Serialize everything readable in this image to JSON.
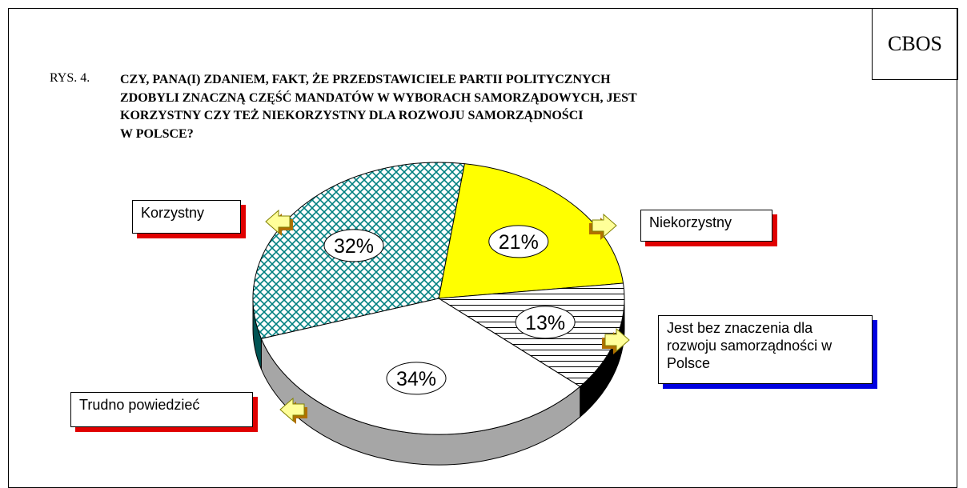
{
  "chart_data": {
    "type": "pie",
    "source": "CBOS",
    "figure_label": "RYS. 4.",
    "title_lines": [
      "CZY, PANA(I) ZDANIEM, FAKT, ŻE PRZEDSTAWICIELE PARTII POLITYCZNYCH",
      "ZDOBYLI ZNACZNĄ CZĘŚĆ MANDATÓW W WYBORACH SAMORZĄDOWYCH, JEST",
      "KORZYSTNY CZY TEŻ NIEKORZYSTNY DLA ROZWOJU SAMORZĄDNOŚCI",
      "W POLSCE?"
    ],
    "categories": [
      "Niekorzystny",
      "Jest bez znaczenia dla rozwoju samorządności w Polsce",
      "Trudno powiedzieć",
      "Korzystny"
    ],
    "values": [
      21,
      13,
      34,
      32
    ],
    "value_labels": [
      "21%",
      "13%",
      "34%",
      "32%"
    ],
    "colors": [
      "#ffff00",
      "#000000",
      "#ffffff",
      "#008080"
    ],
    "patterns": [
      "solid",
      "horizontal",
      "solid",
      "crosshatch"
    ]
  }
}
